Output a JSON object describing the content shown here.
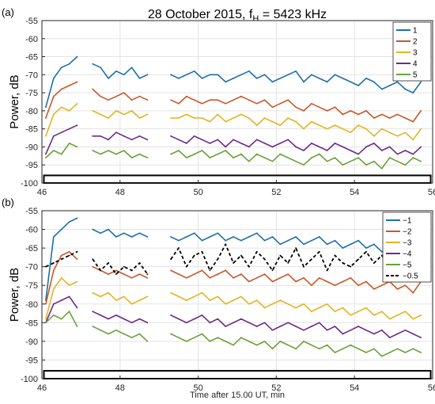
{
  "figure": {
    "title_main": "28 October 2015, f",
    "title_sub": "H",
    "title_tail": " = 5423 kHz",
    "xlabel": "Time after 15.00 UT, min"
  },
  "colors": {
    "blue": "#1f6fa8",
    "orange": "#c8582a",
    "yellow": "#e3b422",
    "purple": "#6e2a87",
    "green": "#6aa23a",
    "black": "#000000"
  },
  "chart_data": [
    {
      "type": "line",
      "panel_label": "(a)",
      "ylabel": "Power, dB",
      "xlim": [
        46,
        56
      ],
      "ylim": [
        -100,
        -55
      ],
      "xticks": [
        46,
        48,
        50,
        52,
        54,
        56
      ],
      "yticks": [
        -55,
        -60,
        -65,
        -70,
        -75,
        -80,
        -85,
        -90,
        -95,
        -100
      ],
      "grid": true,
      "legend_position": "top-right",
      "x": [
        46.1,
        46.3,
        46.5,
        46.7,
        46.9,
        47.3,
        47.5,
        47.7,
        47.9,
        48.1,
        48.3,
        48.5,
        48.7,
        49.3,
        49.5,
        49.7,
        49.9,
        50.1,
        50.3,
        50.5,
        50.7,
        50.9,
        51.1,
        51.3,
        51.5,
        51.7,
        51.9,
        52.1,
        52.3,
        52.5,
        52.7,
        52.9,
        53.1,
        53.3,
        53.5,
        53.7,
        53.9,
        54.1,
        54.3,
        54.5,
        54.7,
        54.9,
        55.1,
        55.3,
        55.5,
        55.7
      ],
      "series": [
        {
          "name": "1",
          "color": "blue",
          "values": [
            -79,
            -71,
            -68,
            -67,
            -65,
            -67,
            -68,
            -71,
            -69,
            -70,
            -68,
            -71,
            -70,
            -70,
            -71,
            -70,
            -69,
            -71,
            -70,
            -70,
            -72,
            -71,
            -70,
            -69,
            -71,
            -70,
            -72,
            -71,
            -70,
            -69,
            -72,
            -70,
            -71,
            -72,
            -70,
            -71,
            -72,
            -73,
            -71,
            -72,
            -74,
            -73,
            -72,
            -74,
            -75,
            -72
          ]
        },
        {
          "name": "2",
          "color": "orange",
          "values": [
            -82,
            -76,
            -74,
            -73,
            -72,
            -74,
            -76,
            -77,
            -76,
            -75,
            -77,
            -76,
            -77,
            -77,
            -78,
            -76,
            -77,
            -78,
            -77,
            -77,
            -78,
            -77,
            -76,
            -77,
            -78,
            -77,
            -79,
            -78,
            -77,
            -79,
            -80,
            -78,
            -79,
            -80,
            -79,
            -81,
            -80,
            -81,
            -80,
            -82,
            -81,
            -82,
            -81,
            -82,
            -83,
            -80
          ]
        },
        {
          "name": "3",
          "color": "yellow",
          "values": [
            -87,
            -81,
            -79,
            -80,
            -78,
            -80,
            -81,
            -82,
            -80,
            -81,
            -80,
            -82,
            -81,
            -82,
            -82,
            -81,
            -82,
            -82,
            -83,
            -81,
            -83,
            -82,
            -81,
            -82,
            -84,
            -82,
            -83,
            -84,
            -82,
            -83,
            -85,
            -83,
            -84,
            -85,
            -84,
            -85,
            -86,
            -84,
            -85,
            -87,
            -85,
            -86,
            -87,
            -86,
            -88,
            -85
          ]
        },
        {
          "name": "4",
          "color": "purple",
          "values": [
            -92,
            -87,
            -86,
            -85,
            -84,
            -87,
            -87,
            -88,
            -86,
            -87,
            -88,
            -87,
            -88,
            -87,
            -88,
            -89,
            -87,
            -88,
            -89,
            -88,
            -90,
            -88,
            -89,
            -90,
            -88,
            -89,
            -90,
            -89,
            -88,
            -90,
            -91,
            -89,
            -90,
            -91,
            -89,
            -90,
            -91,
            -92,
            -90,
            -89,
            -91,
            -90,
            -92,
            -91,
            -92,
            -90
          ]
        },
        {
          "name": "5",
          "color": "green",
          "values": [
            -93,
            -91,
            -92,
            -89,
            -90,
            -91,
            -92,
            -91,
            -92,
            -91,
            -93,
            -92,
            -93,
            -92,
            -91,
            -93,
            -92,
            -91,
            -93,
            -92,
            -91,
            -93,
            -92,
            -94,
            -92,
            -93,
            -94,
            -92,
            -93,
            -94,
            -95,
            -93,
            -92,
            -94,
            -93,
            -95,
            -94,
            -93,
            -95,
            -94,
            -96,
            -93,
            -94,
            -95,
            -93,
            -94
          ]
        }
      ]
    },
    {
      "type": "line",
      "panel_label": "(b)",
      "ylabel": "Power, dB",
      "xlim": [
        46,
        56
      ],
      "ylim": [
        -100,
        -55
      ],
      "xticks": [
        46,
        48,
        50,
        52,
        54,
        56
      ],
      "yticks": [
        -55,
        -60,
        -65,
        -70,
        -75,
        -80,
        -85,
        -90,
        -95,
        -100
      ],
      "grid": true,
      "legend_position": "top-right",
      "x": [
        46.1,
        46.3,
        46.5,
        46.7,
        46.9,
        47.3,
        47.5,
        47.7,
        47.9,
        48.1,
        48.3,
        48.5,
        48.7,
        49.3,
        49.5,
        49.7,
        49.9,
        50.1,
        50.3,
        50.5,
        50.7,
        50.9,
        51.1,
        51.3,
        51.5,
        51.7,
        51.9,
        52.1,
        52.3,
        52.5,
        52.7,
        52.9,
        53.1,
        53.3,
        53.5,
        53.7,
        53.9,
        54.1,
        54.3,
        54.5,
        54.7,
        54.9,
        55.1,
        55.3,
        55.5,
        55.7
      ],
      "series": [
        {
          "name": "−1",
          "color": "blue",
          "values": [
            -79,
            -62,
            -60,
            -58,
            -57,
            -60,
            -61,
            -60,
            -62,
            -61,
            -62,
            -61,
            -62,
            -62,
            -63,
            -62,
            -61,
            -63,
            -62,
            -61,
            -63,
            -62,
            -63,
            -62,
            -61,
            -63,
            -62,
            -64,
            -63,
            -62,
            -64,
            -63,
            -62,
            -64,
            -63,
            -65,
            -64,
            -63,
            -65,
            -64,
            -66,
            -65,
            -64,
            -66,
            -65,
            -64
          ]
        },
        {
          "name": "−2",
          "color": "orange",
          "values": [
            -80,
            -71,
            -67,
            -66,
            -68,
            -70,
            -71,
            -72,
            -71,
            -72,
            -73,
            -72,
            -73,
            -71,
            -72,
            -73,
            -72,
            -71,
            -73,
            -72,
            -71,
            -73,
            -72,
            -74,
            -73,
            -72,
            -74,
            -73,
            -72,
            -74,
            -73,
            -75,
            -73,
            -74,
            -75,
            -74,
            -73,
            -75,
            -74,
            -76,
            -75,
            -74,
            -76,
            -75,
            -77,
            -74
          ]
        },
        {
          "name": "−3",
          "color": "yellow",
          "values": [
            -84,
            -76,
            -73,
            -75,
            -74,
            -77,
            -78,
            -77,
            -79,
            -78,
            -80,
            -79,
            -78,
            -77,
            -78,
            -79,
            -78,
            -77,
            -79,
            -78,
            -80,
            -79,
            -78,
            -80,
            -79,
            -81,
            -80,
            -79,
            -80,
            -81,
            -80,
            -82,
            -81,
            -80,
            -82,
            -81,
            -83,
            -82,
            -81,
            -83,
            -82,
            -84,
            -83,
            -82,
            -84,
            -83
          ]
        },
        {
          "name": "−4",
          "color": "purple",
          "values": [
            -85,
            -80,
            -79,
            -78,
            -81,
            -82,
            -83,
            -84,
            -83,
            -84,
            -85,
            -84,
            -85,
            -83,
            -84,
            -85,
            -84,
            -83,
            -85,
            -84,
            -86,
            -85,
            -84,
            -85,
            -86,
            -85,
            -87,
            -86,
            -85,
            -86,
            -87,
            -86,
            -85,
            -87,
            -86,
            -88,
            -87,
            -86,
            -87,
            -88,
            -87,
            -89,
            -88,
            -87,
            -88,
            -89
          ]
        },
        {
          "name": "−5",
          "color": "green",
          "values": [
            -85,
            -83,
            -84,
            -82,
            -86,
            -86,
            -87,
            -88,
            -87,
            -88,
            -89,
            -88,
            -90,
            -88,
            -89,
            -90,
            -89,
            -88,
            -90,
            -89,
            -90,
            -91,
            -89,
            -90,
            -91,
            -90,
            -92,
            -90,
            -91,
            -92,
            -90,
            -91,
            -92,
            -91,
            -93,
            -92,
            -91,
            -92,
            -93,
            -92,
            -94,
            -93,
            -92,
            -93,
            -92,
            -93
          ]
        },
        {
          "name": "−0.5",
          "color": "black",
          "dashed": true,
          "values": [
            -70,
            -69,
            -68,
            -67,
            -66,
            -68,
            -71,
            -69,
            -72,
            -70,
            -71,
            -69,
            -72,
            -68,
            -65,
            -70,
            -67,
            -66,
            -71,
            -68,
            -64,
            -69,
            -67,
            -70,
            -66,
            -68,
            -71,
            -67,
            -69,
            -65,
            -70,
            -68,
            -66,
            -71,
            -67,
            -69,
            -70,
            -68,
            -66,
            -69,
            -67,
            -70,
            -68,
            -69,
            -70,
            -68
          ]
        }
      ]
    }
  ]
}
